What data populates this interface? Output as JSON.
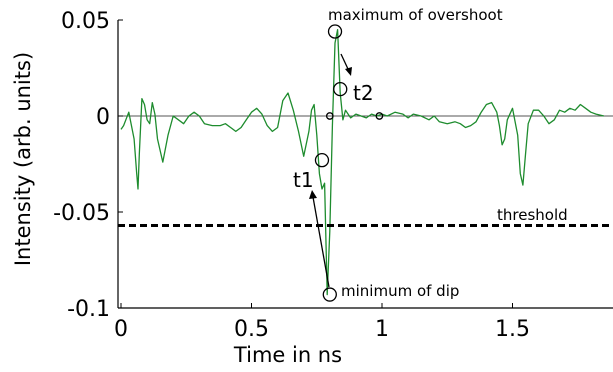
{
  "chart_data": {
    "type": "line",
    "title": "",
    "xlabel": "Time in ns",
    "ylabel": "Intensity (arb. units)",
    "xlim": [
      0,
      1.85
    ],
    "ylim": [
      -0.1,
      0.05
    ],
    "x_ticks": [
      0,
      0.5,
      1,
      1.5
    ],
    "x_tick_labels": [
      "0",
      "0.5",
      "1",
      "1.5"
    ],
    "y_ticks": [
      -0.1,
      -0.05,
      0,
      0.05
    ],
    "y_tick_labels": [
      "-0.1",
      "-0.05",
      "0",
      "0.05"
    ],
    "grid": false,
    "zero_line": 0,
    "series": [
      {
        "color": "#1e8c2e",
        "x": [
          0,
          0.01,
          0.03,
          0.05,
          0.06,
          0.065,
          0.07,
          0.08,
          0.09,
          0.1,
          0.11,
          0.12,
          0.13,
          0.14,
          0.16,
          0.18,
          0.2,
          0.22,
          0.24,
          0.26,
          0.28,
          0.3,
          0.32,
          0.35,
          0.38,
          0.4,
          0.42,
          0.44,
          0.46,
          0.48,
          0.5,
          0.52,
          0.54,
          0.56,
          0.58,
          0.6,
          0.62,
          0.64,
          0.66,
          0.68,
          0.7,
          0.72,
          0.73,
          0.74,
          0.75,
          0.76,
          0.77,
          0.78,
          0.79,
          0.8,
          0.81,
          0.82,
          0.83,
          0.84,
          0.85,
          0.86,
          0.87,
          0.88,
          0.9,
          0.92,
          0.94,
          0.96,
          0.98,
          1.0,
          1.02,
          1.05,
          1.08,
          1.1,
          1.12,
          1.15,
          1.18,
          1.2,
          1.22,
          1.25,
          1.28,
          1.3,
          1.32,
          1.34,
          1.36,
          1.38,
          1.4,
          1.42,
          1.44,
          1.45,
          1.46,
          1.47,
          1.48,
          1.5,
          1.52,
          1.53,
          1.54,
          1.55,
          1.56,
          1.58,
          1.6,
          1.62,
          1.64,
          1.66,
          1.68,
          1.7,
          1.72,
          1.74,
          1.76,
          1.78,
          1.8,
          1.82,
          1.85
        ],
        "values": [
          -0.007,
          -0.005,
          0.002,
          -0.012,
          -0.03,
          -0.038,
          -0.02,
          0.009,
          0.006,
          -0.002,
          -0.004,
          0.007,
          0.001,
          -0.012,
          -0.024,
          -0.01,
          0.0,
          -0.002,
          -0.004,
          0.0,
          0.002,
          0.0,
          -0.004,
          -0.005,
          -0.005,
          -0.004,
          -0.006,
          -0.008,
          -0.006,
          -0.002,
          0.002,
          0.004,
          0.001,
          -0.005,
          -0.008,
          -0.006,
          0.008,
          0.012,
          0.003,
          -0.008,
          -0.021,
          -0.008,
          0.003,
          0.006,
          -0.01,
          -0.03,
          -0.038,
          -0.035,
          -0.093,
          -0.06,
          -0.005,
          0.038,
          0.045,
          0.012,
          -0.002,
          0.003,
          0.001,
          -0.001,
          0.001,
          0.0,
          -0.001,
          0.001,
          0.0,
          0.001,
          0.0,
          0.002,
          0.001,
          -0.001,
          0.001,
          0.0,
          -0.002,
          0.0,
          -0.003,
          -0.004,
          -0.003,
          -0.004,
          -0.006,
          -0.005,
          -0.003,
          0.002,
          0.006,
          0.007,
          0.002,
          -0.005,
          -0.015,
          -0.012,
          -0.002,
          0.004,
          -0.01,
          -0.03,
          -0.036,
          -0.02,
          -0.004,
          0.003,
          0.003,
          0.0,
          -0.004,
          -0.002,
          0.003,
          0.002,
          0.004,
          0.003,
          0.006,
          0.004,
          0.002,
          0.001,
          0.0
        ]
      }
    ],
    "threshold": {
      "y": -0.057,
      "label": "threshold"
    },
    "markers": [
      {
        "x": 0.8,
        "y": 0.0,
        "size": "small"
      },
      {
        "x": 0.99,
        "y": 0.0,
        "size": "small"
      },
      {
        "x": 0.77,
        "y": -0.023,
        "size": "large"
      },
      {
        "x": 0.8,
        "y": -0.093,
        "size": "large"
      },
      {
        "x": 0.82,
        "y": 0.044,
        "size": "large"
      },
      {
        "x": 0.84,
        "y": 0.014,
        "size": "large"
      }
    ],
    "annotations": {
      "overshoot": "maximum of overshoot",
      "dip": "minimum of dip",
      "t1": "t1",
      "t2": "t2"
    }
  }
}
